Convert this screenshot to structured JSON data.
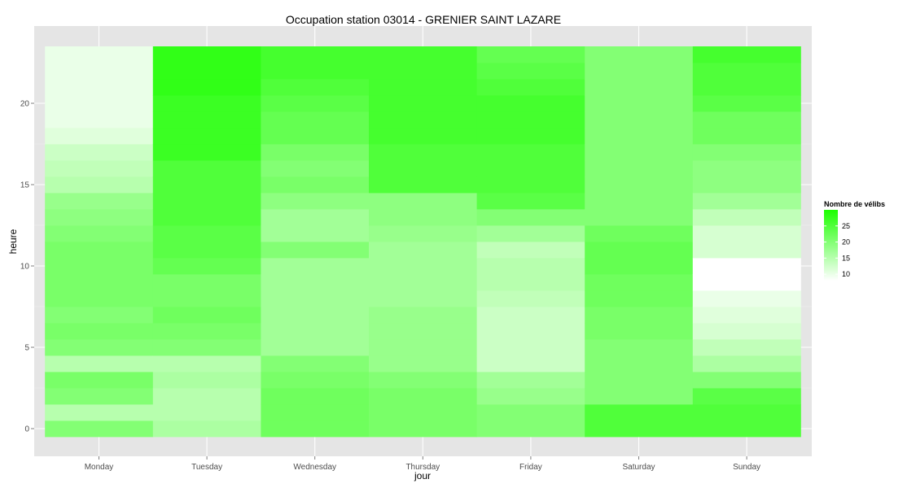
{
  "chart_data": {
    "type": "heatmap",
    "title": "Occupation station 03014 - GRENIER SAINT LAZARE",
    "xlabel": "jour",
    "ylabel": "heure",
    "x_categories": [
      "Monday",
      "Tuesday",
      "Wednesday",
      "Thursday",
      "Friday",
      "Saturday",
      "Sunday"
    ],
    "y_ticks": [
      0,
      5,
      10,
      15,
      20
    ],
    "ylim": [
      -0.5,
      23.5
    ],
    "legend": {
      "title": "Nombre de vélibs",
      "ticks": [
        10,
        15,
        20,
        25
      ],
      "range": [
        8,
        30
      ],
      "low_color": "#ffffff",
      "high_color": "#1cff00",
      "position": "right"
    },
    "grid": true,
    "panel_color": "#e5e5e5",
    "hours": [
      0,
      1,
      2,
      3,
      4,
      5,
      6,
      7,
      8,
      9,
      10,
      11,
      12,
      13,
      14,
      15,
      16,
      17,
      18,
      19,
      20,
      21,
      22,
      23
    ],
    "values": [
      [
        20,
        15,
        20,
        21,
        15,
        20,
        21,
        20,
        21,
        21,
        21,
        21,
        20,
        19,
        18,
        15,
        14,
        13,
        11,
        10,
        10,
        10,
        10,
        10
      ],
      [
        16,
        15,
        15,
        16,
        15,
        20,
        21,
        22,
        21,
        21,
        23,
        24,
        24,
        25,
        25,
        25,
        25,
        27,
        27,
        27,
        27,
        28,
        28,
        28
      ],
      [
        22,
        22,
        22,
        21,
        20,
        17,
        17,
        17,
        17,
        17,
        17,
        20,
        17,
        17,
        19,
        21,
        20,
        21,
        23,
        23,
        24,
        25,
        26,
        26
      ],
      [
        21,
        21,
        21,
        20,
        18,
        18,
        18,
        18,
        17,
        17,
        17,
        17,
        18,
        19,
        19,
        25,
        25,
        25,
        26,
        26,
        26,
        26,
        26,
        26
      ],
      [
        20,
        20,
        18,
        17,
        13,
        13,
        13,
        13,
        14,
        15,
        15,
        14,
        17,
        20,
        24,
        25,
        25,
        25,
        26,
        26,
        26,
        25,
        24,
        23
      ],
      [
        25,
        25,
        20,
        20,
        20,
        20,
        21,
        21,
        22,
        22,
        23,
        23,
        22,
        20,
        20,
        20,
        20,
        20,
        20,
        20,
        20,
        20,
        20,
        20
      ],
      [
        25,
        25,
        24,
        20,
        16,
        14,
        12,
        11,
        10,
        8,
        8,
        12,
        12,
        14,
        17,
        19,
        19,
        20,
        22,
        22,
        24,
        25,
        25,
        26
      ]
    ]
  }
}
